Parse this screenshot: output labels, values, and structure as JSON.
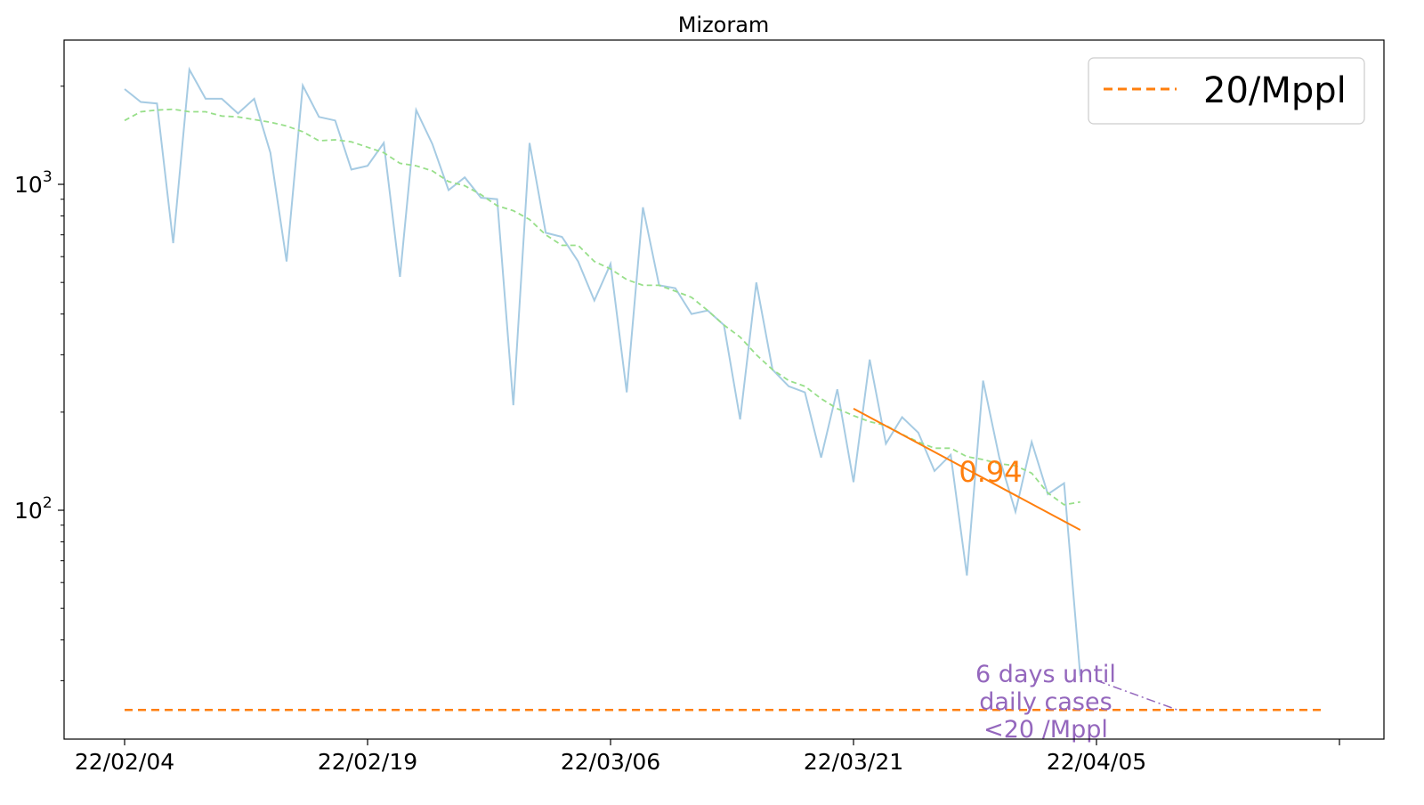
{
  "chart_data": {
    "type": "line",
    "title": "Mizoram",
    "xlabel": "",
    "ylabel": "",
    "yscale": "log",
    "ylim": [
      22,
      2700
    ],
    "x_start": "2022-02-04",
    "x_ticks": [
      "22/02/04",
      "22/02/19",
      "22/03/06",
      "22/03/21",
      "22/04/05",
      ""
    ],
    "y_ticks": [
      {
        "value": 100,
        "base": "10",
        "exp": "2"
      },
      {
        "value": 1000,
        "base": "10",
        "exp": "3"
      }
    ],
    "series": [
      {
        "name": "",
        "style": "solid",
        "color": "#a6cbe3",
        "values": [
          1960,
          1790,
          1770,
          660,
          2250,
          1830,
          1830,
          1650,
          1830,
          1250,
          580,
          2010,
          1610,
          1570,
          1110,
          1140,
          1340,
          520,
          1690,
          1330,
          960,
          1050,
          910,
          900,
          210,
          1340,
          710,
          690,
          580,
          440,
          570,
          230,
          850,
          490,
          480,
          400,
          410,
          370,
          190,
          500,
          270,
          240,
          230,
          145,
          235,
          122,
          290,
          160,
          193,
          173,
          132,
          148,
          63,
          250,
          145,
          99,
          162,
          112,
          121,
          31
        ]
      },
      {
        "name": "",
        "style": "dashed",
        "color": "#98df8a",
        "values": [
          1570,
          1670,
          1690,
          1700,
          1670,
          1670,
          1620,
          1610,
          1580,
          1550,
          1510,
          1450,
          1360,
          1370,
          1350,
          1300,
          1250,
          1160,
          1140,
          1100,
          1020,
          990,
          930,
          860,
          830,
          780,
          700,
          650,
          650,
          580,
          550,
          510,
          490,
          490,
          470,
          450,
          410,
          370,
          340,
          300,
          270,
          250,
          240,
          220,
          205,
          195,
          187,
          182,
          171,
          162,
          155,
          155,
          146,
          143,
          139,
          137,
          130,
          113,
          104,
          106
        ]
      }
    ],
    "fit_line": {
      "x0": 45,
      "y0": 205,
      "x1": 59,
      "y1": 87,
      "label": "0.94",
      "color": "#ff7f0e"
    },
    "threshold": {
      "name": "20/Mppl",
      "value": 24.4,
      "x0": 0,
      "x1": 74,
      "color": "#ff7f0e"
    },
    "annotation": {
      "lines": [
        "6 days until",
        "daily cases",
        "<20 /Mppl"
      ],
      "color": "#9467bd",
      "arrow_from": {
        "x": 60,
        "y": 31
      },
      "arrow_to": {
        "x": 65,
        "y": 24.4
      }
    },
    "legend": {
      "position": "top-right",
      "entries": [
        "20/Mppl"
      ]
    }
  }
}
